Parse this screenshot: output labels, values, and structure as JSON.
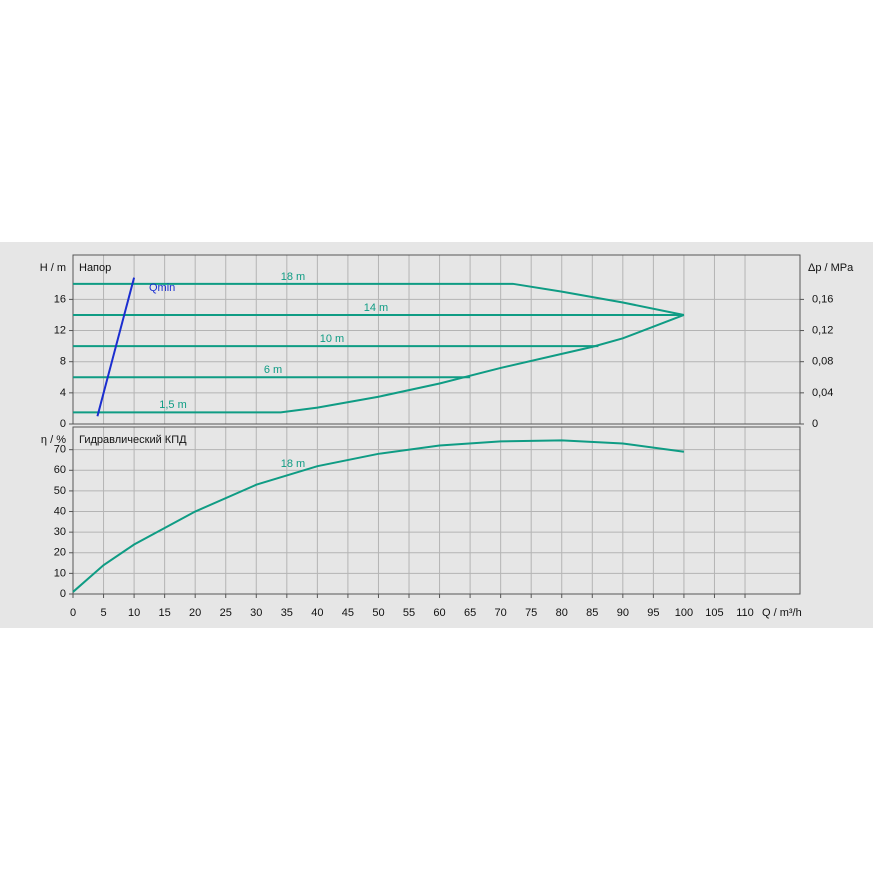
{
  "chart_data": [
    {
      "type": "line",
      "title": "Напор",
      "ylabel": "H / m",
      "y2label": "Δp / MPa",
      "xlim": [
        0,
        119
      ],
      "xticks": [
        0,
        5,
        10,
        15,
        20,
        25,
        30,
        35,
        40,
        45,
        50,
        55,
        60,
        65,
        70,
        75,
        80,
        85,
        90,
        95,
        100,
        105,
        110
      ],
      "ylim": [
        0,
        21.7
      ],
      "yticks": [
        0,
        4,
        8,
        12,
        16
      ],
      "y2lim": [
        0,
        0.217
      ],
      "y2ticks": [
        0,
        {
          "value": 0.04,
          "label": "0,04"
        },
        {
          "value": 0.08,
          "label": "0,08"
        },
        {
          "value": 0.12,
          "label": "0,12"
        },
        {
          "value": 0.16,
          "label": "0,16"
        }
      ],
      "grid": true,
      "series": [
        {
          "name": "18 m",
          "color": "#0f9c84",
          "x": [
            0,
            72,
            80,
            90,
            100
          ],
          "values": [
            18,
            18,
            17,
            15.6,
            14
          ]
        },
        {
          "name": "14 m",
          "color": "#0f9c84",
          "x": [
            0,
            100
          ],
          "values": [
            14,
            14
          ]
        },
        {
          "name": "10 m",
          "color": "#0f9c84",
          "x": [
            0,
            86
          ],
          "values": [
            10,
            10
          ]
        },
        {
          "name": "6 m",
          "color": "#0f9c84",
          "x": [
            0,
            65
          ],
          "values": [
            6,
            6
          ]
        },
        {
          "name": "1,5 m",
          "color": "#0f9c84",
          "x": [
            0,
            34,
            40,
            50,
            60,
            70,
            80,
            85,
            90,
            100
          ],
          "values": [
            1.5,
            1.5,
            2.1,
            3.5,
            5.2,
            7.2,
            9,
            9.9,
            11,
            14
          ]
        },
        {
          "name": "Qmin",
          "color": "#1b2ed0",
          "x": [
            4,
            10
          ],
          "values": [
            1,
            18.8
          ]
        }
      ]
    },
    {
      "type": "line",
      "title": "Гидравлический КПД",
      "ylabel": "η / %",
      "xlabel": "Q / m³/h",
      "xlim": [
        0,
        119
      ],
      "xticks": [
        0,
        5,
        10,
        15,
        20,
        25,
        30,
        35,
        40,
        45,
        50,
        55,
        60,
        65,
        70,
        75,
        80,
        85,
        90,
        95,
        100,
        105,
        110
      ],
      "ylim": [
        0,
        81
      ],
      "yticks": [
        0,
        10,
        20,
        30,
        40,
        50,
        60,
        70
      ],
      "grid": true,
      "series": [
        {
          "name": "18 m",
          "color": "#0f9c84",
          "x": [
            0,
            5,
            10,
            20,
            30,
            40,
            50,
            60,
            70,
            80,
            90,
            100
          ],
          "values": [
            1,
            14,
            24,
            40,
            53,
            62,
            68,
            72,
            74,
            74.5,
            73,
            69
          ]
        }
      ]
    }
  ]
}
